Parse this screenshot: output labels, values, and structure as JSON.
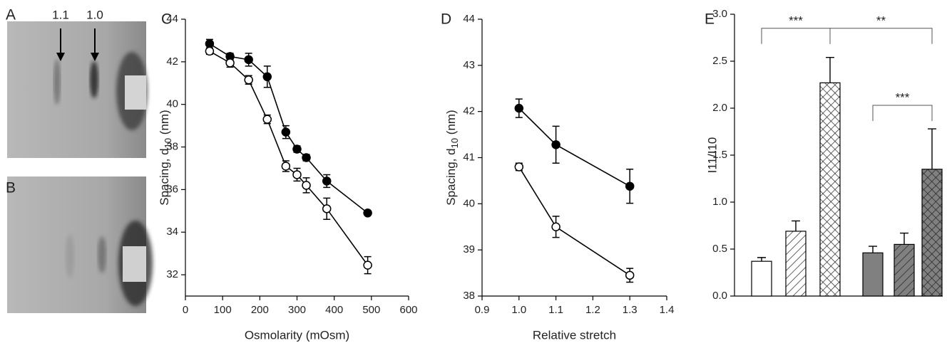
{
  "panels": {
    "A": {
      "label": "A",
      "annotations": [
        "1.1",
        "1.0"
      ]
    },
    "B": {
      "label": "B"
    }
  },
  "chart_data": [
    {
      "type": "line",
      "panel_label": "C",
      "xlabel": "Osmolarity (mOsm)",
      "ylabel_parts": [
        "Spacing, d",
        "10",
        " (nm)"
      ],
      "x": [
        65,
        120,
        170,
        220,
        270,
        300,
        325,
        380,
        490
      ],
      "series": [
        {
          "marker": "filled",
          "color": "#000000",
          "values": [
            42.85,
            42.25,
            42.1,
            41.3,
            38.7,
            37.9,
            37.5,
            36.4,
            34.9
          ],
          "errors": [
            0.2,
            0.15,
            0.3,
            0.5,
            0.3,
            0.15,
            0.15,
            0.3,
            0.1
          ]
        },
        {
          "marker": "open",
          "color": "#000000",
          "values": [
            42.5,
            41.95,
            41.15,
            39.3,
            37.1,
            36.7,
            36.2,
            35.1,
            32.45
          ],
          "errors": [
            0.15,
            0.2,
            0.2,
            0.2,
            0.25,
            0.3,
            0.35,
            0.5,
            0.4
          ]
        }
      ],
      "xlim": [
        0,
        600
      ],
      "xticks": [
        0,
        100,
        200,
        300,
        400,
        500,
        600
      ],
      "ylim": [
        31,
        44
      ],
      "yticks": [
        32,
        34,
        36,
        38,
        40,
        42,
        44
      ]
    },
    {
      "type": "line",
      "panel_label": "D",
      "xlabel": "Relative stretch",
      "ylabel_parts": [
        "Spacing, d",
        "10",
        " (nm)"
      ],
      "x": [
        1.0,
        1.1,
        1.3
      ],
      "series": [
        {
          "marker": "filled",
          "color": "#000000",
          "values": [
            42.07,
            41.28,
            40.38
          ],
          "errors": [
            0.2,
            0.4,
            0.37
          ]
        },
        {
          "marker": "open",
          "color": "#000000",
          "values": [
            40.8,
            39.5,
            38.45
          ],
          "errors": [
            0.08,
            0.23,
            0.15
          ]
        }
      ],
      "xlim": [
        0.9,
        1.4
      ],
      "xticks": [
        0.9,
        {
          "value": 1.0,
          "label": "1.0"
        },
        1.1,
        1.2,
        1.3,
        1.4
      ],
      "ylim": [
        38,
        44
      ],
      "yticks": [
        38,
        39,
        40,
        41,
        42,
        43,
        44
      ]
    },
    {
      "type": "bar",
      "panel_label": "E",
      "ylabel": "I11/I10",
      "values": [
        0.37,
        0.69,
        2.27,
        0.46,
        0.55,
        1.35
      ],
      "errors": [
        0.04,
        0.11,
        0.27,
        0.07,
        0.12,
        0.43
      ],
      "colors": [
        "#ffffff",
        "#ffffff",
        "#ffffff",
        "#808080",
        "#808080",
        "#808080"
      ],
      "patterns": [
        "none",
        "hatch",
        "cross",
        "none",
        "hatch",
        "cross"
      ],
      "ylim": [
        0,
        3
      ],
      "yticks": [
        {
          "value": 0,
          "label": "0.0"
        },
        0.5,
        {
          "value": 1,
          "label": "1.0"
        },
        1.5,
        {
          "value": 2,
          "label": "2.0"
        },
        2.5,
        {
          "value": 3,
          "label": "3.0"
        }
      ],
      "brackets": [
        {
          "text": "***",
          "from": 0,
          "to": 2,
          "y": 2.85
        },
        {
          "text": "**",
          "from": 2,
          "to": 5,
          "y": 2.85
        },
        {
          "text": "***",
          "from": 3,
          "to": 5,
          "y": 2.03
        }
      ]
    }
  ]
}
